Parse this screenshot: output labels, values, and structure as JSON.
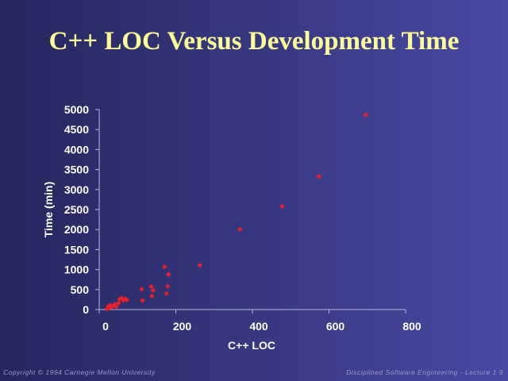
{
  "slide": {
    "title": "C++ LOC Versus Development Time",
    "footer_left": "Copyright © 1994 Carnegie Mellon University",
    "footer_right": "Disciplined Software Engineering - Lecture 1  9"
  },
  "colors": {
    "title": "#ffff99",
    "axis_text": "#ffffff",
    "marker": "#e8202a"
  },
  "chart_data": {
    "type": "scatter",
    "xlabel": "C++  LOC",
    "ylabel": "Time (min)",
    "xlim": [
      0,
      800
    ],
    "ylim": [
      0,
      5000
    ],
    "xticks": [
      0,
      200,
      400,
      600,
      800
    ],
    "yticks": [
      0,
      500,
      1000,
      1500,
      2000,
      2500,
      3000,
      3500,
      4000,
      4500,
      5000
    ],
    "grid": false,
    "points": [
      {
        "x": 0,
        "y": 20
      },
      {
        "x": 3,
        "y": 80
      },
      {
        "x": 5,
        "y": 40
      },
      {
        "x": 8,
        "y": 110
      },
      {
        "x": 12,
        "y": 60
      },
      {
        "x": 15,
        "y": 90
      },
      {
        "x": 20,
        "y": 130
      },
      {
        "x": 24,
        "y": 70
      },
      {
        "x": 30,
        "y": 160
      },
      {
        "x": 33,
        "y": 260
      },
      {
        "x": 38,
        "y": 290
      },
      {
        "x": 43,
        "y": 230
      },
      {
        "x": 48,
        "y": 270
      },
      {
        "x": 52,
        "y": 240
      },
      {
        "x": 90,
        "y": 510
      },
      {
        "x": 92,
        "y": 230
      },
      {
        "x": 115,
        "y": 580
      },
      {
        "x": 117,
        "y": 340
      },
      {
        "x": 120,
        "y": 480
      },
      {
        "x": 150,
        "y": 1070
      },
      {
        "x": 155,
        "y": 400
      },
      {
        "x": 158,
        "y": 580
      },
      {
        "x": 160,
        "y": 880
      },
      {
        "x": 242,
        "y": 1110
      },
      {
        "x": 347,
        "y": 2010
      },
      {
        "x": 457,
        "y": 2580
      },
      {
        "x": 553,
        "y": 3330
      },
      {
        "x": 675,
        "y": 4870
      }
    ]
  }
}
